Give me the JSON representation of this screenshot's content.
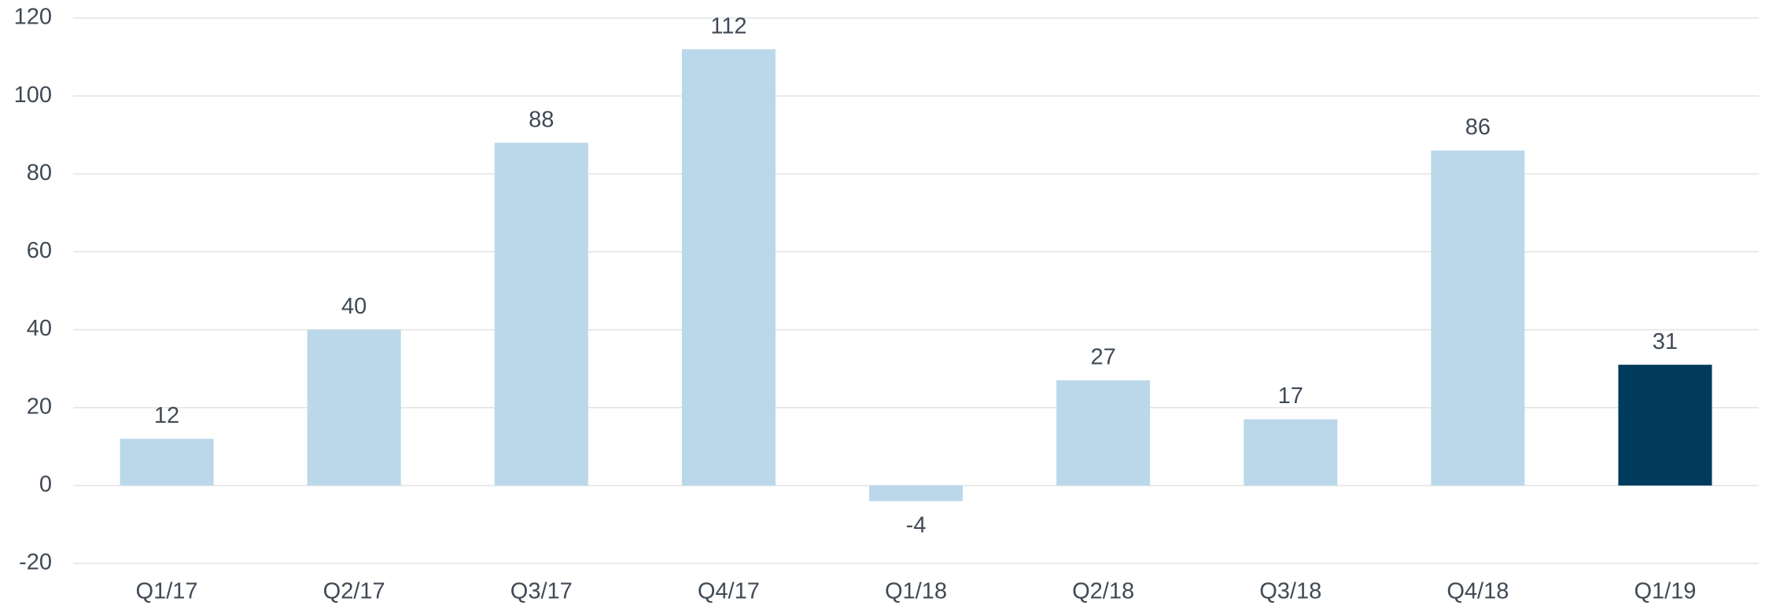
{
  "chart_data": {
    "type": "bar",
    "categories": [
      "Q1/17",
      "Q2/17",
      "Q3/17",
      "Q4/17",
      "Q1/18",
      "Q2/18",
      "Q3/18",
      "Q4/18",
      "Q1/19"
    ],
    "values": [
      12,
      40,
      88,
      112,
      -4,
      27,
      17,
      86,
      31
    ],
    "colors": [
      "#bad8ea",
      "#bad8ea",
      "#bad8ea",
      "#bad8ea",
      "#bad8ea",
      "#bad8ea",
      "#bad8ea",
      "#bad8ea",
      "#003a5c"
    ],
    "ylim": [
      -20,
      120
    ],
    "yticks": [
      -20,
      0,
      20,
      40,
      60,
      80,
      100,
      120
    ],
    "grid": true
  }
}
